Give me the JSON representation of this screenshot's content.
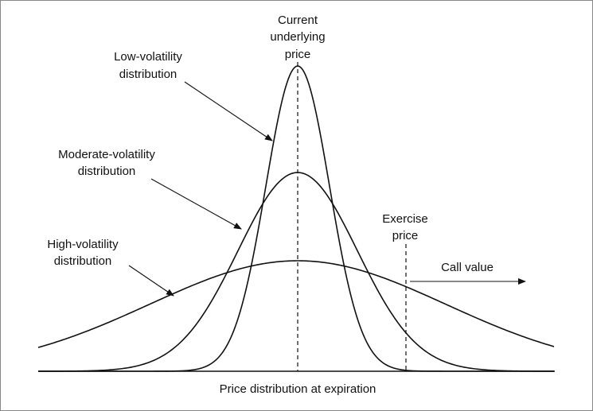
{
  "labels": {
    "current_price": [
      "Current",
      "underlying",
      "price"
    ],
    "low_volatility": [
      "Low-volatility",
      "distribution"
    ],
    "moderate_volatility": [
      "Moderate-volatility",
      "distribution"
    ],
    "high_volatility": [
      "High-volatility",
      "distribution"
    ],
    "exercise_price": [
      "Exercise",
      "price"
    ],
    "call_value": "Call value",
    "x_axis": "Price distribution at expiration"
  }
}
